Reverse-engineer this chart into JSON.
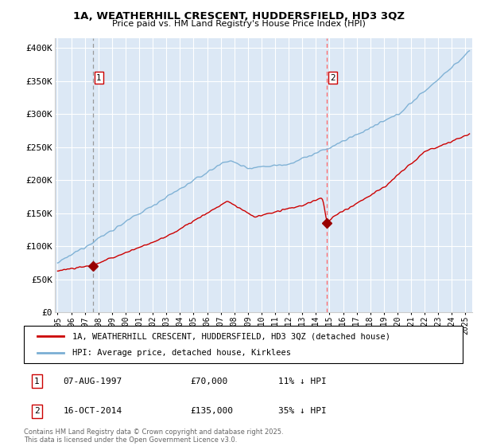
{
  "title_line1": "1A, WEATHERHILL CRESCENT, HUDDERSFIELD, HD3 3QZ",
  "title_line2": "Price paid vs. HM Land Registry's House Price Index (HPI)",
  "ylabel_ticks": [
    "£0",
    "£50K",
    "£100K",
    "£150K",
    "£200K",
    "£250K",
    "£300K",
    "£350K",
    "£400K"
  ],
  "ytick_values": [
    0,
    50000,
    100000,
    150000,
    200000,
    250000,
    300000,
    350000,
    400000
  ],
  "ylim": [
    0,
    415000
  ],
  "xlim_start": 1994.8,
  "xlim_end": 2025.5,
  "background_color": "#dce8f5",
  "plot_bg_color": "#dce8f5",
  "grid_color": "#ffffff",
  "sale1_x": 1997.6,
  "sale1_y": 70000,
  "sale1_label": "07-AUG-1997",
  "sale1_price": "£70,000",
  "sale1_note": "11% ↓ HPI",
  "sale2_x": 2014.79,
  "sale2_y": 135000,
  "sale2_label": "16-OCT-2014",
  "sale2_price": "£135,000",
  "sale2_note": "35% ↓ HPI",
  "legend_entry1": "1A, WEATHERHILL CRESCENT, HUDDERSFIELD, HD3 3QZ (detached house)",
  "legend_entry2": "HPI: Average price, detached house, Kirklees",
  "footer": "Contains HM Land Registry data © Crown copyright and database right 2025.\nThis data is licensed under the Open Government Licence v3.0.",
  "red_line_color": "#cc0000",
  "blue_line_color": "#7bafd4",
  "sale1_vline_color": "#aaaaaa",
  "sale2_vline_color": "#ff6666",
  "marker_color": "#990000"
}
